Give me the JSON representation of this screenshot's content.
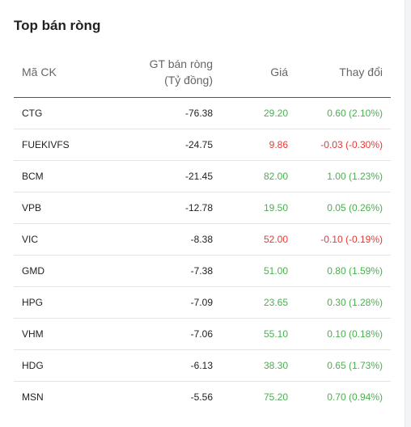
{
  "widget": {
    "title": "Top bán ròng"
  },
  "table": {
    "headers": {
      "code": "Mã CK",
      "value_line1": "GT bán ròng",
      "value_line2": "(Tỷ đồng)",
      "price": "Giá",
      "change": "Thay đổi"
    },
    "rows": [
      {
        "code": "CTG",
        "value": "-76.38",
        "price": "29.20",
        "change": "0.60 (2.10%)",
        "trend": "up"
      },
      {
        "code": "FUEKIVFS",
        "value": "-24.75",
        "price": "9.86",
        "change": "-0.03 (-0.30%)",
        "trend": "down"
      },
      {
        "code": "BCM",
        "value": "-21.45",
        "price": "82.00",
        "change": "1.00 (1.23%)",
        "trend": "up"
      },
      {
        "code": "VPB",
        "value": "-12.78",
        "price": "19.50",
        "change": "0.05 (0.26%)",
        "trend": "up"
      },
      {
        "code": "VIC",
        "value": "-8.38",
        "price": "52.00",
        "change": "-0.10 (-0.19%)",
        "trend": "down"
      },
      {
        "code": "GMD",
        "value": "-7.38",
        "price": "51.00",
        "change": "0.80 (1.59%)",
        "trend": "up"
      },
      {
        "code": "HPG",
        "value": "-7.09",
        "price": "23.65",
        "change": "0.30 (1.28%)",
        "trend": "up"
      },
      {
        "code": "VHM",
        "value": "-7.06",
        "price": "55.10",
        "change": "0.10 (0.18%)",
        "trend": "up"
      },
      {
        "code": "HDG",
        "value": "-6.13",
        "price": "38.30",
        "change": "0.65 (1.73%)",
        "trend": "up"
      },
      {
        "code": "MSN",
        "value": "-5.56",
        "price": "75.20",
        "change": "0.70 (0.94%)",
        "trend": "up"
      }
    ]
  },
  "colors": {
    "up": "#4caf50",
    "down": "#e53935"
  }
}
